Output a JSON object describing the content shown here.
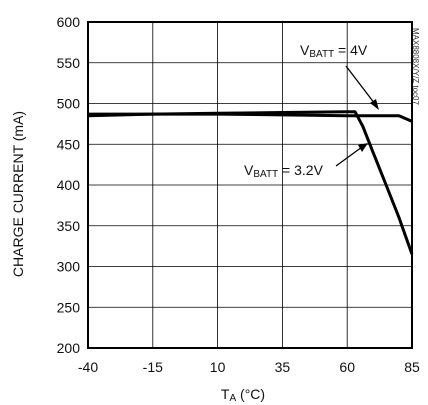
{
  "chart_data": {
    "type": "line",
    "title": "",
    "xlabel": "TA (°C)",
    "xlabel_main": "T",
    "xlabel_sub": "A",
    "xlabel_unit": " (°C)",
    "ylabel": "CHARGE CURRENT (mA)",
    "xlim": [
      -40,
      85
    ],
    "ylim": [
      200,
      600
    ],
    "xticks": [
      -40,
      -15,
      10,
      35,
      60,
      85
    ],
    "yticks": [
      200,
      250,
      300,
      350,
      400,
      450,
      500,
      550,
      600
    ],
    "grid": true,
    "series": [
      {
        "name": "VBATT = 4V",
        "name_main": "V",
        "name_sub": "BATT",
        "name_rest": " = 4V",
        "x": [
          -40,
          -15,
          10,
          35,
          60,
          75,
          80,
          85
        ],
        "y": [
          487,
          487,
          487,
          486,
          485,
          485,
          485,
          478
        ]
      },
      {
        "name": "VBATT = 3.2V",
        "name_main": "V",
        "name_sub": "BATT",
        "name_rest": " = 3.2V",
        "x": [
          -40,
          -15,
          10,
          35,
          60,
          63,
          66,
          70,
          75,
          80,
          85
        ],
        "y": [
          485,
          487,
          488,
          489,
          490,
          490,
          472,
          440,
          400,
          360,
          315
        ]
      }
    ],
    "watermark": "MAX8808X/Y/Z toc07"
  }
}
